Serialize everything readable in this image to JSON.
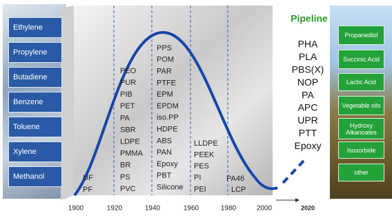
{
  "feedstocks": [
    "Ethylene",
    "Propylene",
    "Butadiene",
    "Benzene",
    "Toluene",
    "Xylene",
    "Methanol"
  ],
  "timeline": {
    "years": [
      "1900",
      "1920",
      "1940",
      "1960",
      "1980",
      "2000",
      "2020"
    ],
    "columns": [
      [
        "UF",
        "PF"
      ],
      [
        "PEO",
        "PUR",
        "PIB",
        "PET",
        "PA",
        "SBR",
        "LDPE",
        "PMMA",
        "BR",
        "PS",
        "PVC"
      ],
      [
        "PPS",
        "POM",
        "PAR",
        "PTFE",
        "EPM",
        "EPDM",
        "iso.PP",
        "HDPE",
        "ABS",
        "PAN",
        "Epoxy",
        "PBT",
        "Silicone"
      ],
      [
        "LLDPE",
        "PEEK",
        "PES",
        "PI",
        "PEI"
      ],
      [
        "PA46",
        "LCP"
      ]
    ]
  },
  "pipeline": {
    "title": "Pipeline",
    "items": [
      "PHA",
      "PLA",
      "PBS(X)",
      "NOP",
      "PA",
      "APC",
      "UPR",
      "PTT",
      "Epoxy"
    ]
  },
  "bio_feedstocks": [
    "Propanediol",
    "Succinic Acid",
    "Lactic Acid",
    "Vegetable oils",
    "Hydroxy Alkanoates",
    "Isosorbide",
    "other"
  ]
}
